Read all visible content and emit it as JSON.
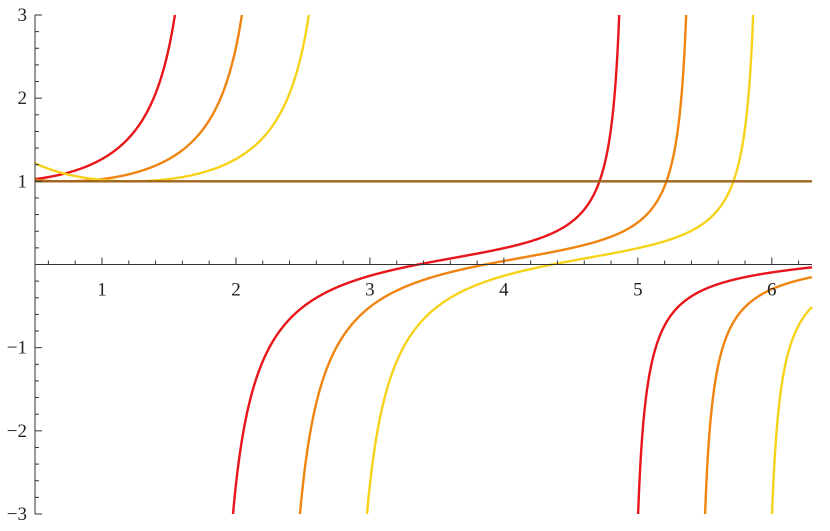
{
  "chart_data": {
    "type": "line",
    "title": "",
    "xlabel": "",
    "ylabel": "",
    "xlim": [
      0.5,
      6.3
    ],
    "ylim": [
      -3,
      3
    ],
    "grid": false,
    "legend": "none",
    "x_ticks": [
      {
        "value": 1,
        "label": "1"
      },
      {
        "value": 2,
        "label": "2"
      },
      {
        "value": 3,
        "label": "3"
      },
      {
        "value": 4,
        "label": "4"
      },
      {
        "value": 5,
        "label": "5"
      },
      {
        "value": 6,
        "label": "6"
      }
    ],
    "y_ticks": [
      {
        "value": -3,
        "label": "−3"
      },
      {
        "value": -2,
        "label": "−2"
      },
      {
        "value": -1,
        "label": "−1"
      },
      {
        "value": 1,
        "label": "1"
      },
      {
        "value": 2,
        "label": "2"
      },
      {
        "value": 3,
        "label": "3"
      }
    ],
    "series": [
      {
        "expression": "tan(x - 0.22) / (x - 0.22)",
        "color": "#e8151a"
      },
      {
        "expression": "tan(x - 0.72) / (x - 0.72)",
        "color": "#f08410"
      },
      {
        "expression": "tan(x - 1.22) / (x - 1.22)",
        "color": "#f7d21a"
      },
      {
        "expression": "1",
        "color": "#a0641e"
      }
    ]
  }
}
